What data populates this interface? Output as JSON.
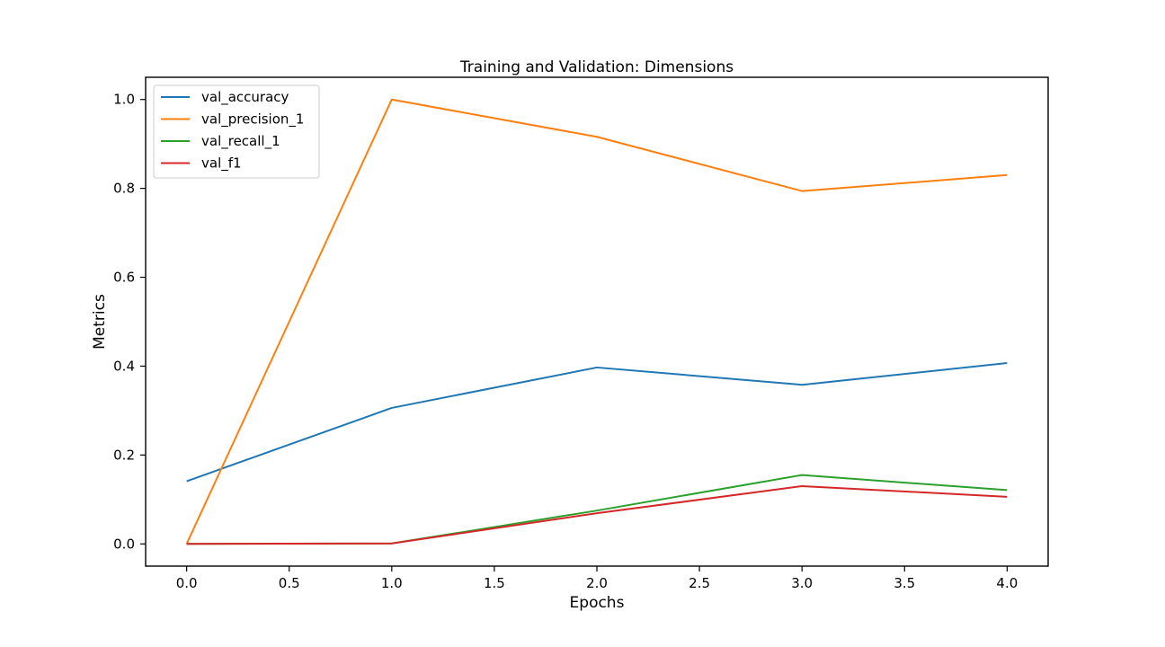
{
  "chart_data": {
    "type": "line",
    "title": "Training and Validation: Dimensions",
    "xlabel": "Epochs",
    "ylabel": "Metrics",
    "x": [
      0,
      1,
      2,
      3,
      4
    ],
    "xlim": [
      -0.2,
      4.2
    ],
    "ylim": [
      -0.05,
      1.05
    ],
    "xticks": [
      0.0,
      0.5,
      1.0,
      1.5,
      2.0,
      2.5,
      3.0,
      3.5,
      4.0
    ],
    "xtick_labels": [
      "0.0",
      "0.5",
      "1.0",
      "1.5",
      "2.0",
      "2.5",
      "3.0",
      "3.5",
      "4.0"
    ],
    "yticks": [
      0.0,
      0.2,
      0.4,
      0.6,
      0.8,
      1.0
    ],
    "ytick_labels": [
      "0.0",
      "0.2",
      "0.4",
      "0.6",
      "0.8",
      "1.0"
    ],
    "grid": false,
    "legend_position": "top-left",
    "series": [
      {
        "name": "val_accuracy",
        "color": "#1f77b4",
        "values": [
          0.141,
          0.306,
          0.397,
          0.358,
          0.407
        ]
      },
      {
        "name": "val_precision_1",
        "color": "#ff7f0e",
        "values": [
          0.0,
          1.0,
          0.916,
          0.794,
          0.83
        ]
      },
      {
        "name": "val_recall_1",
        "color": "#2ca02c",
        "values": [
          0.0,
          0.001,
          0.075,
          0.155,
          0.121
        ]
      },
      {
        "name": "val_f1",
        "color": "#d62728",
        "values": [
          0.0,
          0.001,
          0.069,
          0.13,
          0.106
        ]
      }
    ]
  }
}
